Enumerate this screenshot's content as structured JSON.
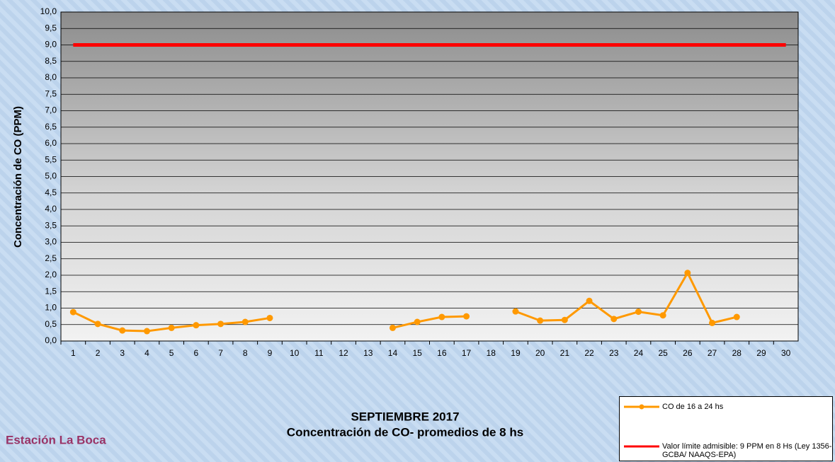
{
  "chart_data": {
    "type": "line",
    "title": "SEPTIEMBRE 2017",
    "subtitle": "Concentración de CO- promedios de 8 hs",
    "station": "Estación La Boca",
    "y_label": "Concentración de CO (PPM)",
    "categories": [
      1,
      2,
      3,
      4,
      5,
      6,
      7,
      8,
      9,
      10,
      11,
      12,
      13,
      14,
      15,
      16,
      17,
      18,
      19,
      20,
      21,
      22,
      23,
      24,
      25,
      26,
      27,
      28,
      29,
      30
    ],
    "series": [
      {
        "name": "CO de 16 a 24 hs",
        "color": "#ff9900",
        "markers": true,
        "values": [
          0.88,
          0.52,
          0.32,
          0.3,
          0.4,
          0.48,
          0.52,
          0.58,
          0.7,
          null,
          null,
          null,
          null,
          0.4,
          0.58,
          0.73,
          0.75,
          null,
          0.9,
          0.62,
          0.64,
          1.22,
          0.67,
          0.89,
          0.78,
          2.07,
          0.55,
          0.73,
          null,
          null
        ]
      },
      {
        "name": "Valor límite admisible: 9 PPM en 8 Hs (Ley 1356-GCBA/ NAAQS-EPA)",
        "color": "#ff0000",
        "markers": false,
        "values": [
          9,
          9,
          9,
          9,
          9,
          9,
          9,
          9,
          9,
          9,
          9,
          9,
          9,
          9,
          9,
          9,
          9,
          9,
          9,
          9,
          9,
          9,
          9,
          9,
          9,
          9,
          9,
          9,
          9,
          9
        ]
      }
    ],
    "ylim": [
      0,
      10
    ],
    "yticks": [
      {
        "value": 0,
        "label": "0,0"
      },
      {
        "value": 0.5,
        "label": "0,5"
      },
      {
        "value": 1,
        "label": "1,0"
      },
      {
        "value": 1.5,
        "label": "1,5"
      },
      {
        "value": 2,
        "label": "2,0"
      },
      {
        "value": 2.5,
        "label": "2,5"
      },
      {
        "value": 3,
        "label": "3,0"
      },
      {
        "value": 3.5,
        "label": "3,5"
      },
      {
        "value": 4,
        "label": "4,0"
      },
      {
        "value": 4.5,
        "label": "4,5"
      },
      {
        "value": 5,
        "label": "5,0"
      },
      {
        "value": 5.5,
        "label": "5,5"
      },
      {
        "value": 6,
        "label": "6,0"
      },
      {
        "value": 6.5,
        "label": "6,5"
      },
      {
        "value": 7,
        "label": "7,0"
      },
      {
        "value": 7.5,
        "label": "7,5"
      },
      {
        "value": 8,
        "label": "8,0"
      },
      {
        "value": 8.5,
        "label": "8,5"
      },
      {
        "value": 9,
        "label": "9,0"
      },
      {
        "value": 9.5,
        "label": "9,5"
      },
      {
        "value": 10,
        "label": "10,0"
      }
    ],
    "grid": true
  }
}
